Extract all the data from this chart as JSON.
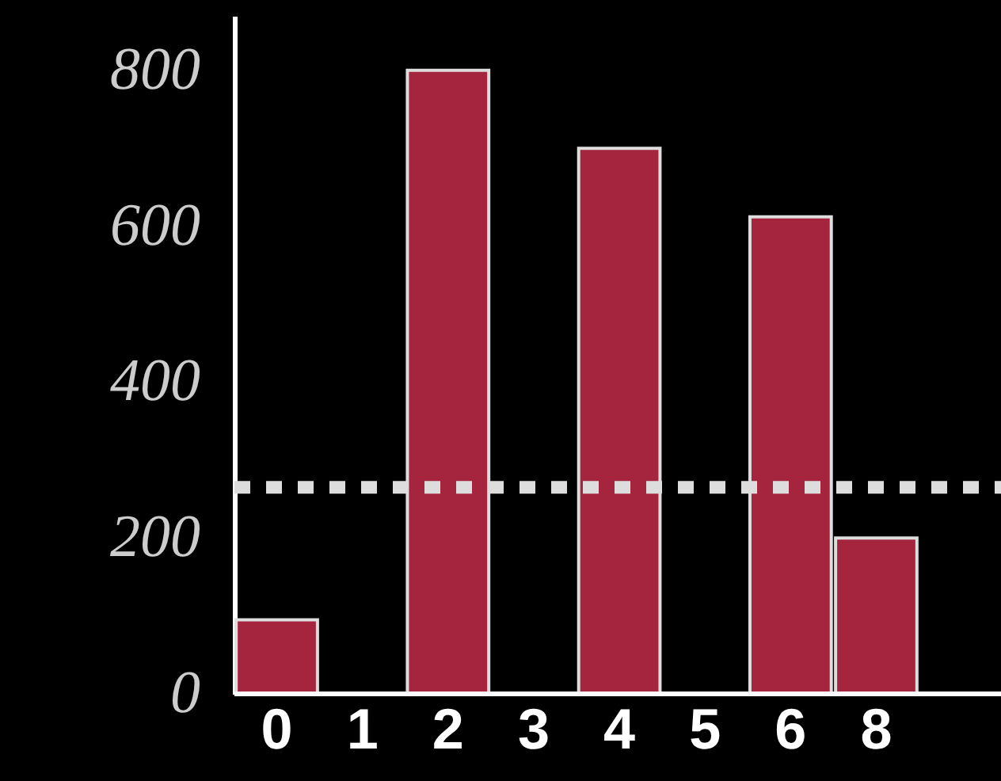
{
  "chart_data": {
    "type": "bar",
    "categories": [
      "0",
      "1",
      "2",
      "3",
      "4",
      "5",
      "6",
      "8"
    ],
    "values": [
      95,
      null,
      800,
      null,
      700,
      null,
      612,
      200
    ],
    "color": "#a6253e",
    "ylim": [
      0,
      870
    ],
    "yticks": [
      0,
      200,
      400,
      600,
      800
    ],
    "grid": false,
    "ref_lines": [
      {
        "axis": "y",
        "value": 265,
        "color": "#dddddd",
        "line_style": "dotted"
      }
    ]
  }
}
